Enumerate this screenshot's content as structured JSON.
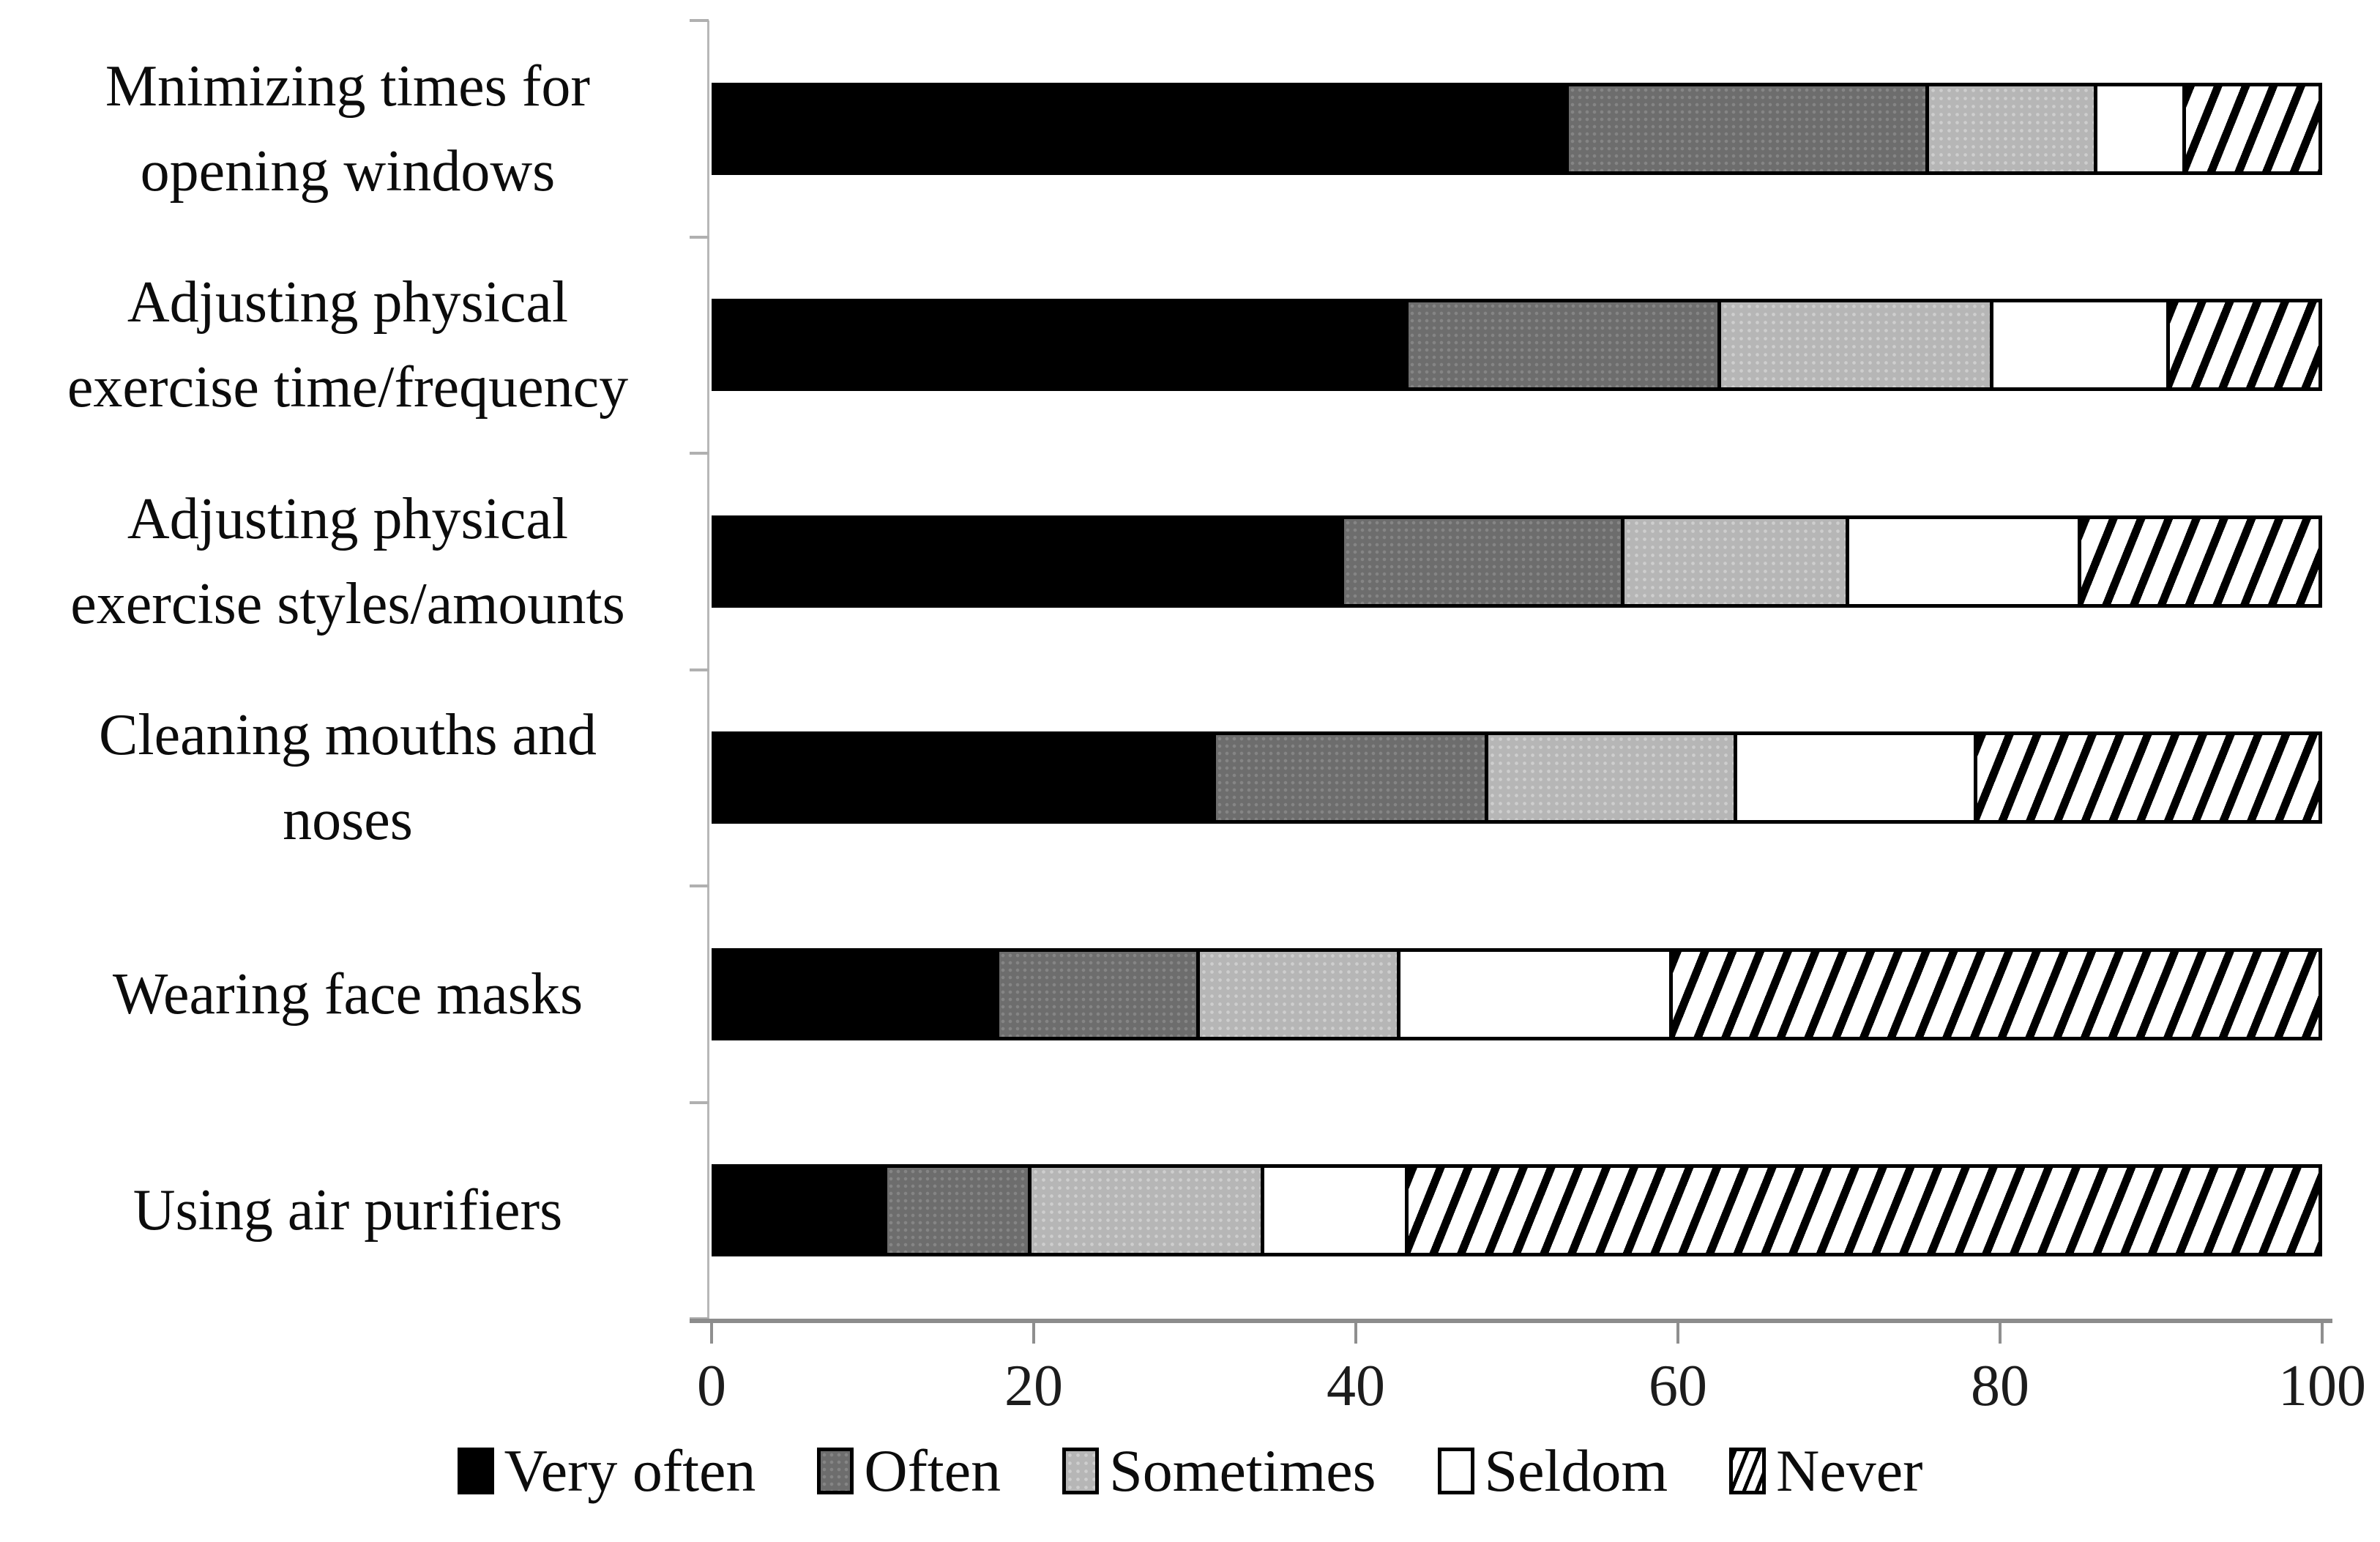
{
  "chart_data": {
    "type": "bar",
    "orientation": "horizontal",
    "stacked": true,
    "title": "",
    "xlabel": "",
    "ylabel": "",
    "xlim": [
      0,
      100
    ],
    "x_ticks": [
      0,
      20,
      40,
      60,
      80,
      100
    ],
    "grid": false,
    "legend_position": "bottom",
    "categories": [
      "Mnimizing times for\nopening windows",
      "Adjusting physical\nexercise time/frequency",
      "Adjusting physical\nexercise styles/amounts",
      "Cleaning mouths and\nnoses",
      "Wearing face masks",
      "Using air purifiers"
    ],
    "series": [
      {
        "name": "Very often",
        "style": "very-often",
        "fill": "solid-black",
        "color": "#000000",
        "values": [
          53,
          43,
          39,
          31,
          17.5,
          10.5
        ]
      },
      {
        "name": "Often",
        "style": "often",
        "fill": "dotted-dark-gray",
        "color": "#6d6d6d",
        "values": [
          22.5,
          19.5,
          17.5,
          17,
          12.5,
          9
        ]
      },
      {
        "name": "Sometimes",
        "style": "sometimes",
        "fill": "dotted-light-gray",
        "color": "#b6b6b6",
        "values": [
          10.5,
          17,
          14,
          15.5,
          12.5,
          14.5
        ]
      },
      {
        "name": "Seldom",
        "style": "seldom",
        "fill": "white",
        "color": "#ffffff",
        "values": [
          5.5,
          11,
          14.5,
          15,
          17,
          9
        ]
      },
      {
        "name": "Never",
        "style": "never",
        "fill": "diagonal-hatch",
        "color": "#000000",
        "values": [
          8.5,
          9.5,
          15,
          21.5,
          40.5,
          57
        ]
      }
    ]
  },
  "axis": {
    "tick_label_color": "#1c1c1c",
    "axis_line_color": "#8c8c8c"
  }
}
